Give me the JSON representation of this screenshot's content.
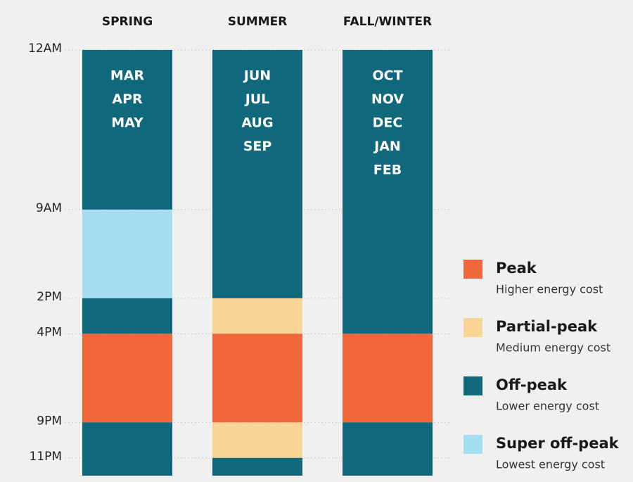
{
  "chart_data": {
    "type": "schedule",
    "columns": [
      {
        "name": "SPRING",
        "months": [
          "MAR",
          "APR",
          "MAY"
        ],
        "segments": [
          {
            "tier": "Off-peak",
            "value": 9
          },
          {
            "tier": "Super off-peak",
            "value": 5
          },
          {
            "tier": "Off-peak",
            "value": 2
          },
          {
            "tier": "Peak",
            "value": 5
          },
          {
            "tier": "Off-peak",
            "value": 3
          }
        ]
      },
      {
        "name": "SUMMER",
        "months": [
          "JUN",
          "JUL",
          "AUG",
          "SEP"
        ],
        "segments": [
          {
            "tier": "Off-peak",
            "value": 14
          },
          {
            "tier": "Partial-peak",
            "value": 2
          },
          {
            "tier": "Peak",
            "value": 5
          },
          {
            "tier": "Partial-peak",
            "value": 2
          },
          {
            "tier": "Off-peak",
            "value": 1
          }
        ]
      },
      {
        "name": "FALL/WINTER",
        "months": [
          "OCT",
          "NOV",
          "DEC",
          "JAN",
          "FEB"
        ],
        "segments": [
          {
            "tier": "Off-peak",
            "value": 16
          },
          {
            "tier": "Peak",
            "value": 5
          },
          {
            "tier": "Off-peak",
            "value": 3
          }
        ]
      }
    ],
    "ylim": [
      0,
      24
    ],
    "yticks": [
      {
        "value": 0,
        "label": "12AM"
      },
      {
        "value": 9,
        "label": "9AM"
      },
      {
        "value": 14,
        "label": "2PM"
      },
      {
        "value": 16,
        "label": "4PM"
      },
      {
        "value": 21,
        "label": "9PM"
      },
      {
        "value": 23,
        "label": "11PM"
      }
    ],
    "grid": true,
    "legend": [
      {
        "name": "Peak",
        "description": "Higher energy cost",
        "color": "#f1683a"
      },
      {
        "name": "Partial-peak",
        "description": "Medium energy cost",
        "color": "#f9d595"
      },
      {
        "name": "Off-peak",
        "description": "Lower energy cost",
        "color": "#0f687c"
      },
      {
        "name": "Super off-peak",
        "description": "Lowest energy cost",
        "color": "#a6def1"
      }
    ]
  }
}
